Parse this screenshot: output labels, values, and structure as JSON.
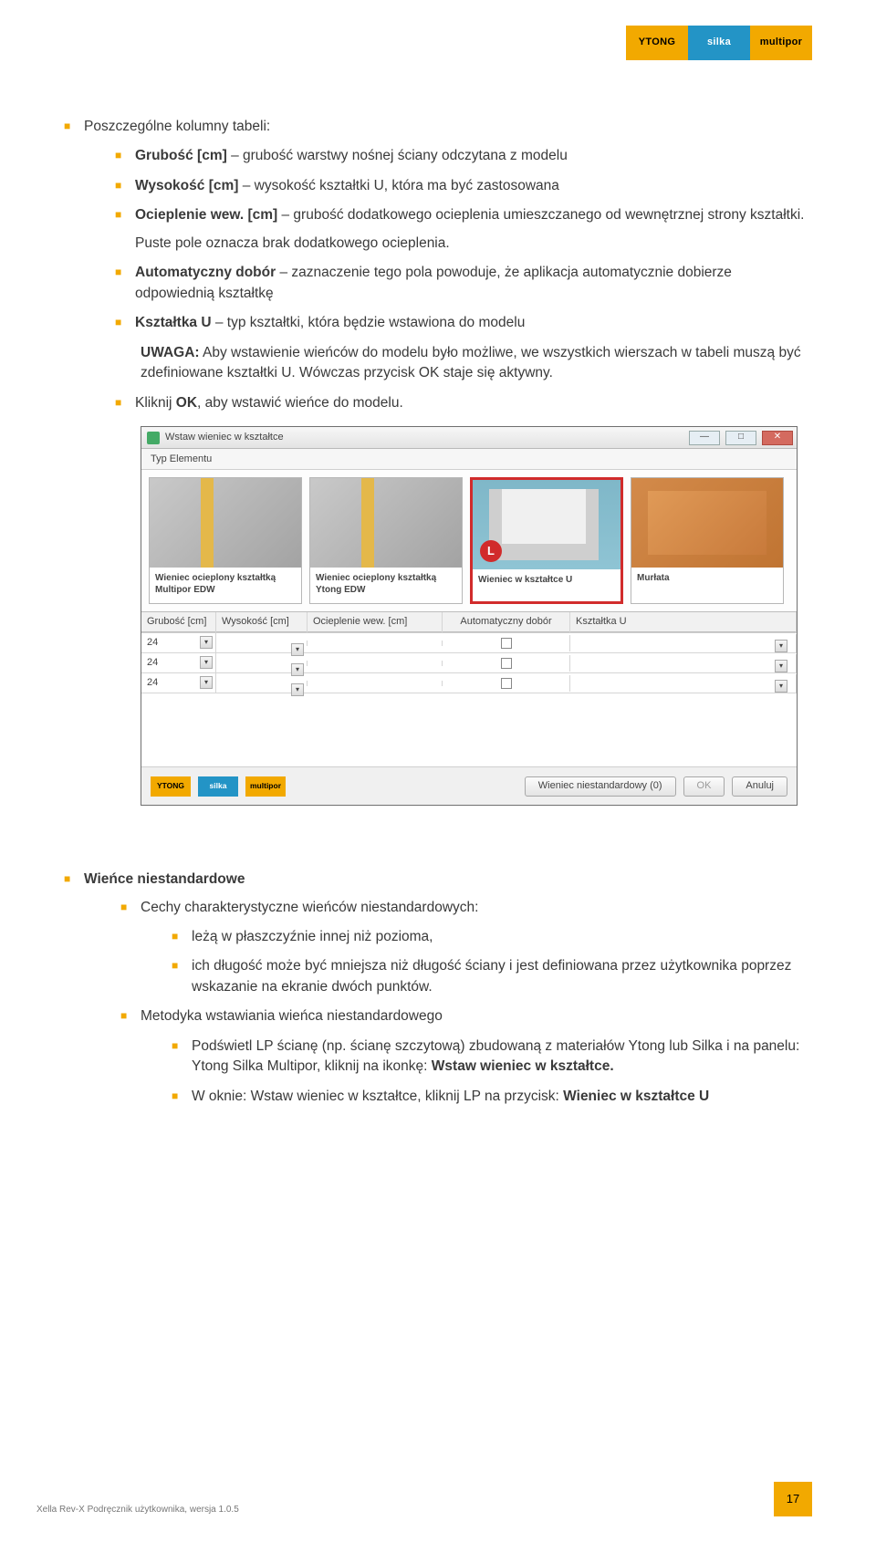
{
  "brands": {
    "ytong": "YTONG",
    "silka": "silka",
    "multipor": "multipor"
  },
  "intro_heading": "Poszczególne kolumny tabeli:",
  "cols": {
    "grubosc_b": "Grubość [cm]",
    "grubosc_t": " – grubość warstwy nośnej ściany odczytana z modelu",
    "wysokosc_b": "Wysokość [cm]",
    "wysokosc_t": " – wysokość kształtki U, która ma być zastosowana",
    "ociep_b": "Ocieplenie wew. [cm]",
    "ociep_t": " – grubość dodatkowego ocieplenia umieszczanego od wewnętrznej strony kształtki.",
    "ociep_note": "Puste pole oznacza brak dodatkowego ocieplenia.",
    "auto_b": "Automatyczny dobór",
    "auto_t": " – zaznaczenie tego pola powoduje, że aplikacja automatycznie dobierze odpowiednią kształtkę",
    "ksz_b": "Kształtka U",
    "ksz_t": " – typ kształtki, która będzie wstawiona do modelu"
  },
  "uwaga_b": "UWAGA:",
  "uwaga_t": " Aby wstawienie wieńców do modelu było możliwe, we wszystkich wierszach w tabeli muszą być zdefiniowane kształtki U. Wówczas przycisk OK staje się aktywny.",
  "click_ok_pre": "Kliknij ",
  "click_ok_b": "OK",
  "click_ok_post": ", aby wstawić wieńce do modelu.",
  "dialog": {
    "title": "Wstaw wieniec w kształtce",
    "section": "Typ Elementu",
    "badge": "L",
    "elems": [
      "Wieniec ocieplony kształtką Multipor EDW",
      "Wieniec ocieplony kształtką Ytong EDW",
      "Wieniec w kształtce U",
      "Murłata"
    ],
    "headers": {
      "c1": "Grubość [cm]",
      "c2": "Wysokość [cm]",
      "c3": "Ocieplenie wew. [cm]",
      "c4": "Automatyczny dobór",
      "c5": "Kształtka U"
    },
    "value": "24",
    "btn_custom": "Wieniec niestandardowy (0)",
    "btn_ok": "OK",
    "btn_cancel": "Anuluj"
  },
  "section2": {
    "title": "Wieńce niestandardowe",
    "cechy": "Cechy charakterystyczne wieńców niestandardowych:",
    "b1": "leżą w płaszczyźnie innej niż pozioma,",
    "b2": "ich długość może być mniejsza niż długość ściany i jest definiowana przez użytkownika poprzez wskazanie na ekranie dwóch punktów.",
    "metodyka": "Metodyka wstawiania wieńca niestandardowego",
    "m1_pre": "Podświetl LP ścianę (np. ścianę szczytową) zbudowaną z materiałów Ytong lub Silka i na panelu: Ytong Silka Multipor, kliknij na ikonkę: ",
    "m1_b": "Wstaw wieniec w kształtce.",
    "m2_pre": "W oknie: Wstaw wieniec w kształtce, kliknij LP na przycisk: ",
    "m2_b": "Wieniec w kształtce U"
  },
  "footer_text": "Xella Rev-X Podręcznik użytkownika, wersja 1.0.5",
  "page_number": "17"
}
